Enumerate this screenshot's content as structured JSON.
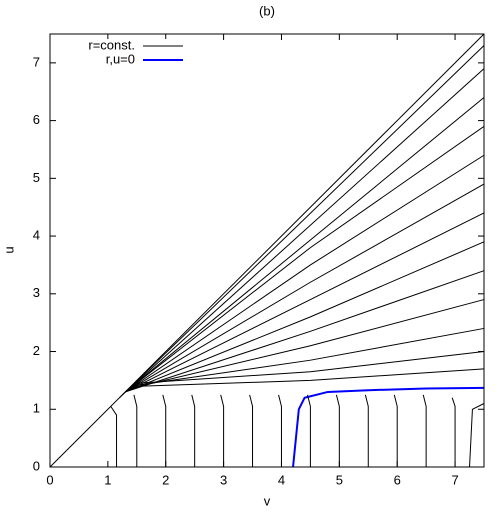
{
  "chart_data": {
    "type": "line",
    "title": "(b)",
    "xlabel": "v",
    "ylabel": "u",
    "xlim": [
      0,
      7.5
    ],
    "ylim": [
      0,
      7.5
    ],
    "xticks": [
      0,
      1,
      2,
      3,
      4,
      5,
      6,
      7
    ],
    "yticks": [
      0,
      1,
      2,
      3,
      4,
      5,
      6,
      7
    ],
    "legend_position": "upper left",
    "legend": [
      {
        "name": "r=const.",
        "color": "#000000"
      },
      {
        "name": "r,u=0",
        "color": "#0000ff"
      }
    ],
    "series": [
      {
        "legend": 1,
        "width": 2,
        "x": [
          4.2,
          4.25,
          4.3,
          4.4,
          4.8,
          5.5,
          6.5,
          7.5
        ],
        "values": [
          0,
          0.5,
          1.0,
          1.2,
          1.3,
          1.33,
          1.36,
          1.37
        ]
      },
      {
        "legend": 0,
        "x": [
          0,
          7.5
        ],
        "values": [
          0,
          7.5
        ]
      },
      {
        "legend": 0,
        "x": [
          1.2,
          7.5
        ],
        "values": [
          1.2,
          7.3
        ]
      },
      {
        "legend": 0,
        "x": [
          1.25,
          7.5
        ],
        "values": [
          1.25,
          6.9
        ]
      },
      {
        "legend": 0,
        "x": [
          1.3,
          7.5
        ],
        "values": [
          1.3,
          6.4
        ]
      },
      {
        "legend": 0,
        "x": [
          1.3,
          4.5,
          7.5
        ],
        "values": [
          1.3,
          3.8,
          5.9
        ]
      },
      {
        "legend": 0,
        "x": [
          1.3,
          4.5,
          7.5
        ],
        "values": [
          1.3,
          3.5,
          5.4
        ]
      },
      {
        "legend": 0,
        "x": [
          1.3,
          4.5,
          7.5
        ],
        "values": [
          1.3,
          3.2,
          4.9
        ]
      },
      {
        "legend": 0,
        "x": [
          1.3,
          4.5,
          7.5
        ],
        "values": [
          1.3,
          2.9,
          4.4
        ]
      },
      {
        "legend": 0,
        "x": [
          1.3,
          4.5,
          7.5
        ],
        "values": [
          1.3,
          2.6,
          3.9
        ]
      },
      {
        "legend": 0,
        "x": [
          1.3,
          4.5,
          7.5
        ],
        "values": [
          1.3,
          2.35,
          3.4
        ]
      },
      {
        "legend": 0,
        "x": [
          1.35,
          4.5,
          7.5
        ],
        "values": [
          1.35,
          2.1,
          2.9
        ]
      },
      {
        "legend": 0,
        "x": [
          1.4,
          4.5,
          7.5
        ],
        "values": [
          1.4,
          1.85,
          2.4
        ]
      },
      {
        "legend": 0,
        "x": [
          1.5,
          4.5,
          7.5
        ],
        "values": [
          1.45,
          1.65,
          2.0
        ]
      },
      {
        "legend": 0,
        "x": [
          1.6,
          4.5,
          7.5
        ],
        "values": [
          1.4,
          1.5,
          1.7
        ]
      },
      {
        "legend": 0,
        "x": [
          1.05,
          1.15,
          1.15
        ],
        "values": [
          1.05,
          0.9,
          0
        ]
      },
      {
        "legend": 0,
        "x": [
          1.45,
          1.5,
          1.5
        ],
        "values": [
          1.25,
          1.05,
          0
        ]
      },
      {
        "legend": 0,
        "x": [
          1.95,
          2,
          2
        ],
        "values": [
          1.25,
          1.05,
          0
        ]
      },
      {
        "legend": 0,
        "x": [
          2.45,
          2.5,
          2.5
        ],
        "values": [
          1.25,
          1.05,
          0
        ]
      },
      {
        "legend": 0,
        "x": [
          2.95,
          3,
          3
        ],
        "values": [
          1.25,
          1.05,
          0
        ]
      },
      {
        "legend": 0,
        "x": [
          3.45,
          3.5,
          3.5
        ],
        "values": [
          1.25,
          1.05,
          0
        ]
      },
      {
        "legend": 0,
        "x": [
          3.95,
          4,
          4
        ],
        "values": [
          1.25,
          1.05,
          0
        ]
      },
      {
        "legend": 0,
        "x": [
          4.45,
          4.5,
          4.5
        ],
        "values": [
          1.25,
          1.05,
          0
        ]
      },
      {
        "legend": 0,
        "x": [
          4.95,
          5,
          5
        ],
        "values": [
          1.25,
          1.05,
          0
        ]
      },
      {
        "legend": 0,
        "x": [
          5.45,
          5.5,
          5.5
        ],
        "values": [
          1.25,
          1.05,
          0
        ]
      },
      {
        "legend": 0,
        "x": [
          5.95,
          6,
          6
        ],
        "values": [
          1.25,
          1.05,
          0
        ]
      },
      {
        "legend": 0,
        "x": [
          6.45,
          6.5,
          6.5
        ],
        "values": [
          1.25,
          1.05,
          0
        ]
      },
      {
        "legend": 0,
        "x": [
          6.95,
          7,
          7
        ],
        "values": [
          1.2,
          1.05,
          0
        ]
      },
      {
        "legend": 0,
        "x": [
          7.5,
          7.3,
          7.25
        ],
        "values": [
          1.1,
          1.0,
          0
        ]
      }
    ]
  }
}
